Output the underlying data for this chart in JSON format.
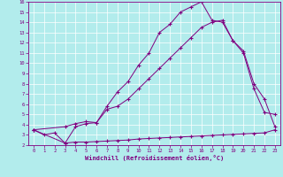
{
  "xlabel": "Windchill (Refroidissement éolien,°C)",
  "bg_color": "#b2ecec",
  "line_color": "#800080",
  "grid_color": "#ffffff",
  "xlim": [
    -0.5,
    23.5
  ],
  "ylim": [
    2,
    16
  ],
  "xticks": [
    0,
    1,
    2,
    3,
    4,
    5,
    6,
    7,
    8,
    9,
    10,
    11,
    12,
    13,
    14,
    15,
    16,
    17,
    18,
    19,
    20,
    21,
    22,
    23
  ],
  "yticks": [
    2,
    3,
    4,
    5,
    6,
    7,
    8,
    9,
    10,
    11,
    12,
    13,
    14,
    15,
    16
  ],
  "curve1_x": [
    0,
    1,
    2,
    3,
    4,
    5,
    6,
    7,
    8,
    9,
    10,
    11,
    12,
    13,
    14,
    15,
    16,
    17,
    18,
    19,
    20,
    21,
    22,
    23
  ],
  "curve1_y": [
    3.5,
    3.0,
    3.2,
    2.2,
    3.8,
    4.1,
    4.2,
    5.8,
    7.2,
    8.2,
    9.8,
    11.0,
    13.0,
    13.8,
    15.0,
    15.5,
    16.0,
    14.2,
    14.0,
    12.2,
    11.0,
    7.5,
    5.2,
    5.0
  ],
  "curve2_x": [
    0,
    3,
    4,
    5,
    6,
    7,
    8,
    9,
    10,
    11,
    12,
    13,
    14,
    15,
    16,
    17,
    18,
    19,
    20,
    21,
    22,
    23
  ],
  "curve2_y": [
    3.5,
    3.8,
    4.1,
    4.3,
    4.2,
    5.5,
    5.8,
    6.5,
    7.5,
    8.5,
    9.5,
    10.5,
    11.5,
    12.5,
    13.5,
    14.0,
    14.2,
    12.2,
    11.2,
    8.0,
    6.5,
    3.8
  ],
  "curve3_x": [
    0,
    3,
    4,
    5,
    6,
    7,
    8,
    9,
    10,
    11,
    12,
    13,
    14,
    15,
    16,
    17,
    18,
    19,
    20,
    21,
    22,
    23
  ],
  "curve3_y": [
    3.5,
    2.2,
    2.3,
    2.3,
    2.35,
    2.4,
    2.45,
    2.5,
    2.6,
    2.65,
    2.7,
    2.75,
    2.8,
    2.85,
    2.9,
    2.95,
    3.0,
    3.05,
    3.1,
    3.15,
    3.2,
    3.5
  ]
}
